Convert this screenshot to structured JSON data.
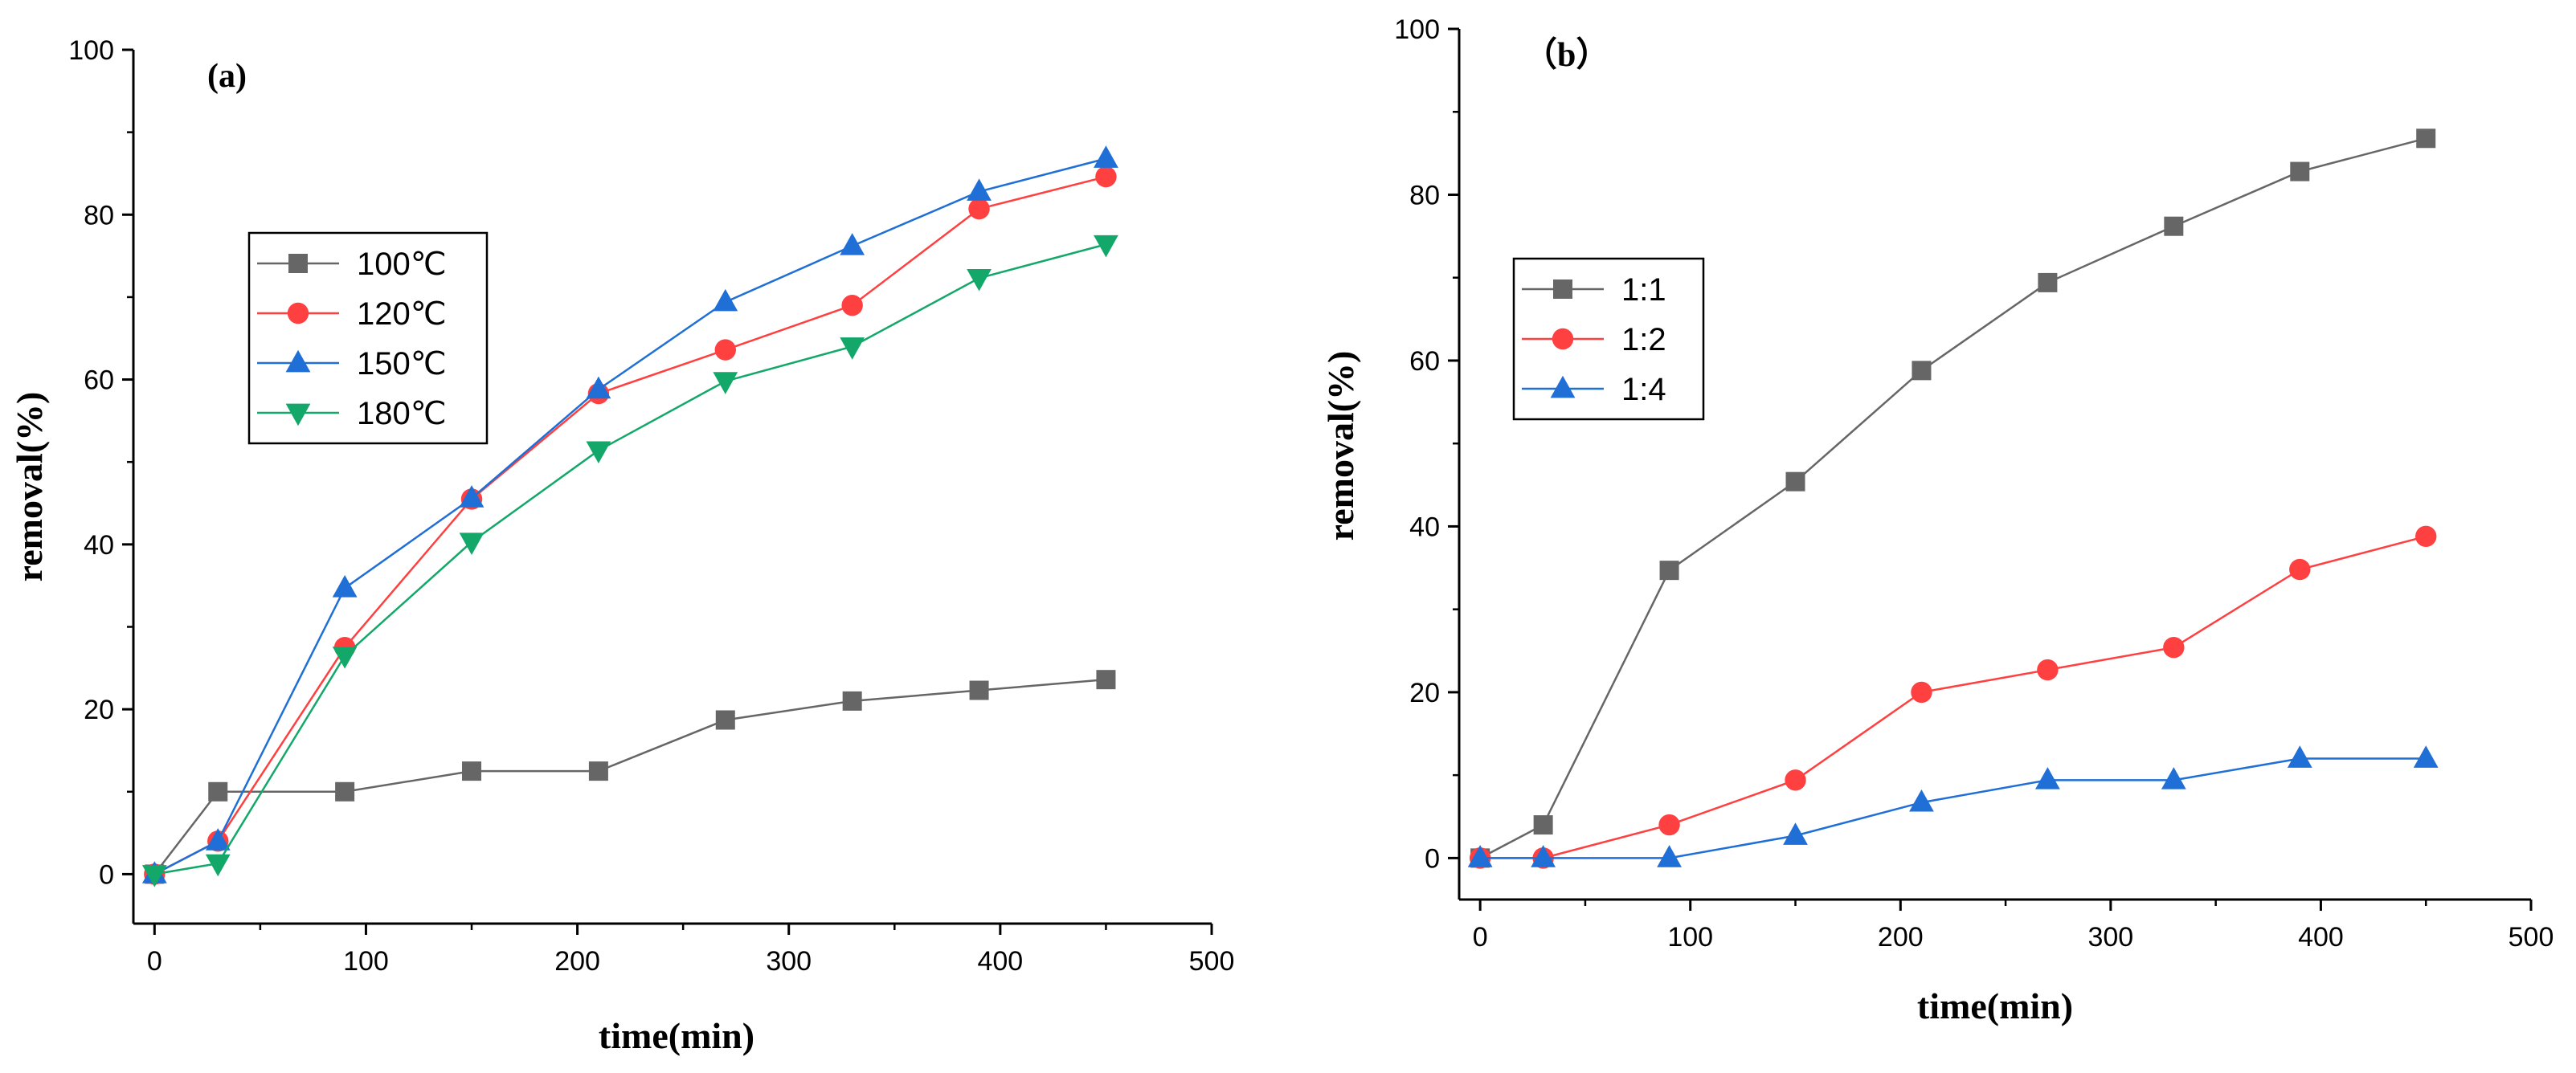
{
  "chart_data": [
    {
      "type": "line",
      "panel_label": "(a)",
      "xlabel": "time(min)",
      "ylabel": "removal(%)",
      "xlim": [
        -10,
        500
      ],
      "ylim": [
        -6,
        100
      ],
      "xticks": [
        0,
        100,
        200,
        300,
        400,
        500
      ],
      "yticks": [
        0,
        20,
        40,
        60,
        80,
        100
      ],
      "legend_placement": "upper-left",
      "grid": false,
      "series": [
        {
          "name": "100℃",
          "color": "#666666",
          "marker": "square",
          "x": [
            0,
            30,
            90,
            150,
            210,
            270,
            330,
            390,
            450
          ],
          "y": [
            0,
            10,
            10,
            12.5,
            12.5,
            18.7,
            21,
            22.3,
            23.6
          ]
        },
        {
          "name": "120℃",
          "color": "#ff4040",
          "marker": "circle",
          "x": [
            0,
            30,
            90,
            150,
            210,
            270,
            330,
            390,
            450
          ],
          "y": [
            0,
            4,
            27.5,
            45.5,
            58.3,
            63.6,
            69,
            80.7,
            84.6
          ]
        },
        {
          "name": "150℃",
          "color": "#1f6fd6",
          "marker": "triangle-up",
          "x": [
            0,
            30,
            90,
            150,
            210,
            270,
            330,
            390,
            450
          ],
          "y": [
            0,
            4,
            34.7,
            45.6,
            58.8,
            69.4,
            76.2,
            82.8,
            86.8
          ]
        },
        {
          "name": "180℃",
          "color": "#13a86a",
          "marker": "triangle-down",
          "x": [
            0,
            30,
            90,
            150,
            210,
            270,
            330,
            390,
            450
          ],
          "y": [
            0,
            1.3,
            26.5,
            40.3,
            51.4,
            59.8,
            64,
            72.3,
            76.4
          ]
        }
      ]
    },
    {
      "type": "line",
      "panel_label": "（b）",
      "xlabel": "time(min)",
      "ylabel": "removal(%)",
      "xlim": [
        -10,
        500
      ],
      "ylim": [
        -5,
        100
      ],
      "xticks": [
        0,
        100,
        200,
        300,
        400,
        500
      ],
      "yticks": [
        0,
        20,
        40,
        60,
        80,
        100
      ],
      "legend_placement": "left-middle",
      "grid": false,
      "series": [
        {
          "name": "1:1",
          "color": "#666666",
          "marker": "square",
          "x": [
            0,
            30,
            90,
            150,
            210,
            270,
            330,
            390,
            450
          ],
          "y": [
            0,
            4,
            34.7,
            45.4,
            58.8,
            69.4,
            76.2,
            82.8,
            86.8
          ]
        },
        {
          "name": "1:2",
          "color": "#ff4040",
          "marker": "circle",
          "x": [
            0,
            30,
            90,
            150,
            210,
            270,
            330,
            390,
            450
          ],
          "y": [
            0,
            0,
            4,
            9.4,
            20,
            22.7,
            25.4,
            34.8,
            38.8
          ]
        },
        {
          "name": "1:4",
          "color": "#1f6fd6",
          "marker": "triangle-up",
          "x": [
            0,
            30,
            90,
            150,
            210,
            270,
            330,
            390,
            450
          ],
          "y": [
            0,
            0,
            0,
            2.7,
            6.7,
            9.4,
            9.4,
            12,
            12
          ]
        }
      ]
    }
  ]
}
